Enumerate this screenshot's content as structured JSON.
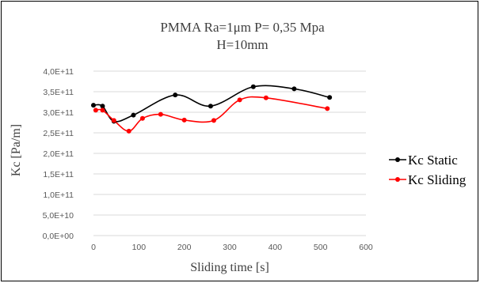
{
  "chart_data": {
    "type": "line",
    "title_line1": "PMMA Ra=1μm P= 0,35 Mpa",
    "title_line2": "H=10mm",
    "xlabel": "Sliding time [s]",
    "ylabel": "Kc [Pa/m]",
    "xlim": [
      0,
      600
    ],
    "ylim": [
      0,
      400000000000
    ],
    "x_ticks": [
      0,
      100,
      200,
      300,
      400,
      500,
      600
    ],
    "x_tick_labels": [
      "0",
      "100",
      "200",
      "300",
      "400",
      "500",
      "600"
    ],
    "y_ticks": [
      0,
      50000000000,
      100000000000,
      150000000000,
      200000000000,
      250000000000,
      300000000000,
      350000000000,
      400000000000
    ],
    "y_tick_labels": [
      "0,0E+00",
      "5,0E+10",
      "1,0E+11",
      "1,5E+11",
      "2,0E+11",
      "2,5E+11",
      "3,0E+11",
      "3,5E+11",
      "4,0E+11"
    ],
    "grid": true,
    "legend_position": "right",
    "smooth": true,
    "series": [
      {
        "name": "Kc Static",
        "color": "#000000",
        "x": [
          0,
          20,
          45,
          88,
          180,
          258,
          352,
          442,
          520
        ],
        "y": [
          317000000000,
          315000000000,
          278000000000,
          293000000000,
          342000000000,
          315000000000,
          362000000000,
          357000000000,
          336000000000
        ]
      },
      {
        "name": "Kc Sliding",
        "color": "#ff0000",
        "x": [
          5,
          20,
          45,
          78,
          108,
          148,
          200,
          265,
          322,
          380,
          515
        ],
        "y": [
          305000000000,
          305000000000,
          280000000000,
          254000000000,
          285000000000,
          295000000000,
          281000000000,
          280000000000,
          330000000000,
          335000000000,
          309000000000
        ]
      }
    ]
  }
}
